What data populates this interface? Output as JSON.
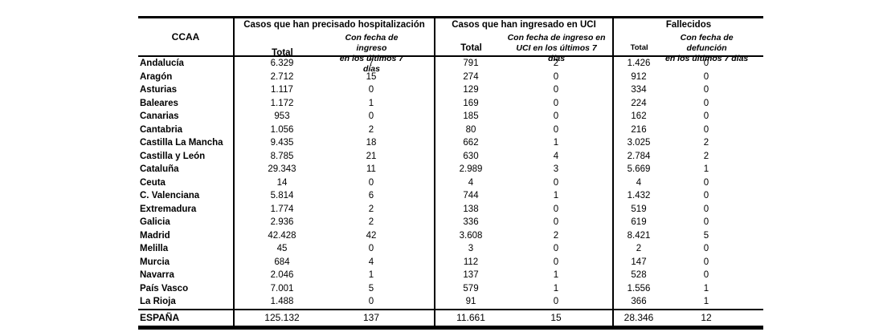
{
  "table": {
    "header": {
      "ccaa_label": "CCAA",
      "groups": [
        {
          "title": "Casos que han precisado hospitalización",
          "total_label": "Total",
          "recent_label_line1": "Con fecha de ingreso",
          "recent_label_line2": "en los últimos 7 días"
        },
        {
          "title": "Casos que han ingresado en UCI",
          "total_label": "Total",
          "recent_label_line1": "Con fecha de ingreso en",
          "recent_label_line2": "UCI en los últimos 7 días"
        },
        {
          "title": "Fallecidos",
          "total_label": "Total",
          "recent_label_line1": "Con fecha de defunción",
          "recent_label_line2": "en los últimos 7 días"
        }
      ]
    },
    "rows": [
      {
        "name": "Andalucía",
        "values": [
          "6.329",
          "7",
          "791",
          "2",
          "1.426",
          "0"
        ]
      },
      {
        "name": "Aragón",
        "values": [
          "2.712",
          "15",
          "274",
          "0",
          "912",
          "0"
        ]
      },
      {
        "name": "Asturias",
        "values": [
          "1.117",
          "0",
          "129",
          "0",
          "334",
          "0"
        ]
      },
      {
        "name": "Baleares",
        "values": [
          "1.172",
          "1",
          "169",
          "0",
          "224",
          "0"
        ]
      },
      {
        "name": "Canarias",
        "values": [
          "953",
          "0",
          "185",
          "0",
          "162",
          "0"
        ]
      },
      {
        "name": "Cantabria",
        "values": [
          "1.056",
          "2",
          "80",
          "0",
          "216",
          "0"
        ]
      },
      {
        "name": "Castilla La Mancha",
        "values": [
          "9.435",
          "18",
          "662",
          "1",
          "3.025",
          "2"
        ]
      },
      {
        "name": "Castilla y León",
        "values": [
          "8.785",
          "21",
          "630",
          "4",
          "2.784",
          "2"
        ]
      },
      {
        "name": "Cataluña",
        "values": [
          "29.343",
          "11",
          "2.989",
          "3",
          "5.669",
          "1"
        ]
      },
      {
        "name": "Ceuta",
        "values": [
          "14",
          "0",
          "4",
          "0",
          "4",
          "0"
        ]
      },
      {
        "name": "C. Valenciana",
        "values": [
          "5.814",
          "6",
          "744",
          "1",
          "1.432",
          "0"
        ]
      },
      {
        "name": "Extremadura",
        "values": [
          "1.774",
          "2",
          "138",
          "0",
          "519",
          "0"
        ]
      },
      {
        "name": "Galicia",
        "values": [
          "2.936",
          "2",
          "336",
          "0",
          "619",
          "0"
        ]
      },
      {
        "name": "Madrid",
        "values": [
          "42.428",
          "42",
          "3.608",
          "2",
          "8.421",
          "5"
        ]
      },
      {
        "name": "Melilla",
        "values": [
          "45",
          "0",
          "3",
          "0",
          "2",
          "0"
        ]
      },
      {
        "name": "Murcia",
        "values": [
          "684",
          "4",
          "112",
          "0",
          "147",
          "0"
        ]
      },
      {
        "name": "Navarra",
        "values": [
          "2.046",
          "1",
          "137",
          "1",
          "528",
          "0"
        ]
      },
      {
        "name": "País Vasco",
        "values": [
          "7.001",
          "5",
          "579",
          "1",
          "1.556",
          "1"
        ]
      },
      {
        "name": "La Rioja",
        "values": [
          "1.488",
          "0",
          "91",
          "0",
          "366",
          "1"
        ]
      }
    ],
    "total_row": {
      "name": "ESPAÑA",
      "values": [
        "125.132",
        "137",
        "11.661",
        "15",
        "28.346",
        "12"
      ]
    }
  }
}
